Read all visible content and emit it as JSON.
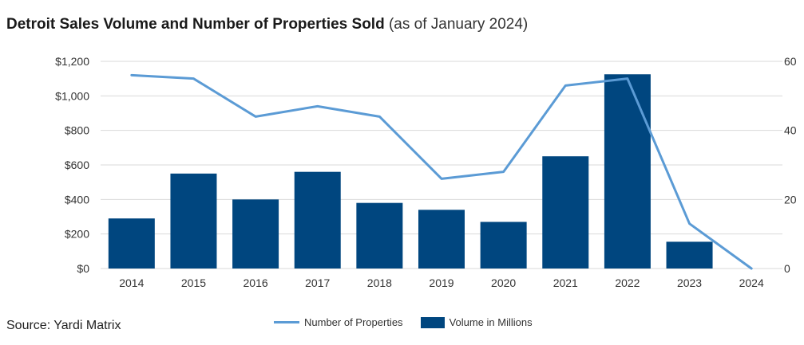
{
  "header": {
    "title_bold": "Detroit Sales Volume and Number of Properties Sold",
    "title_sub": "(as of January 2024)"
  },
  "footer": {
    "source": "Source: Yardi Matrix"
  },
  "legend": {
    "line_label": "Number of Properties",
    "bar_label": "Volume in Millions"
  },
  "colors": {
    "bar": "#00467f",
    "line": "#5b9bd5",
    "grid": "#d9d9d9"
  },
  "chart_data": {
    "type": "bar",
    "title": "Detroit Sales Volume and Number of Properties Sold (as of January 2024)",
    "categories": [
      "2014",
      "2015",
      "2016",
      "2017",
      "2018",
      "2019",
      "2020",
      "2021",
      "2022",
      "2023",
      "2024"
    ],
    "ylim": [
      0,
      1200
    ],
    "y_ticks": [
      0,
      200,
      400,
      600,
      800,
      1000,
      1200
    ],
    "y_tick_labels": [
      "$0",
      "$200",
      "$400",
      "$600",
      "$800",
      "$1,000",
      "$1,200"
    ],
    "y2lim": [
      0,
      60
    ],
    "y2_ticks": [
      0,
      20,
      40,
      60
    ],
    "y2_tick_labels": [
      "0",
      "20",
      "40",
      "60"
    ],
    "grid": true,
    "legend_position": "bottom",
    "series": [
      {
        "name": "Volume in Millions",
        "type": "bar",
        "axis": "left",
        "values": [
          290,
          550,
          400,
          560,
          380,
          340,
          270,
          650,
          1125,
          155,
          null
        ]
      },
      {
        "name": "Number of Properties",
        "type": "line",
        "axis": "right",
        "values": [
          56,
          55,
          44,
          47,
          44,
          26,
          28,
          53,
          55,
          13,
          0
        ]
      }
    ]
  }
}
